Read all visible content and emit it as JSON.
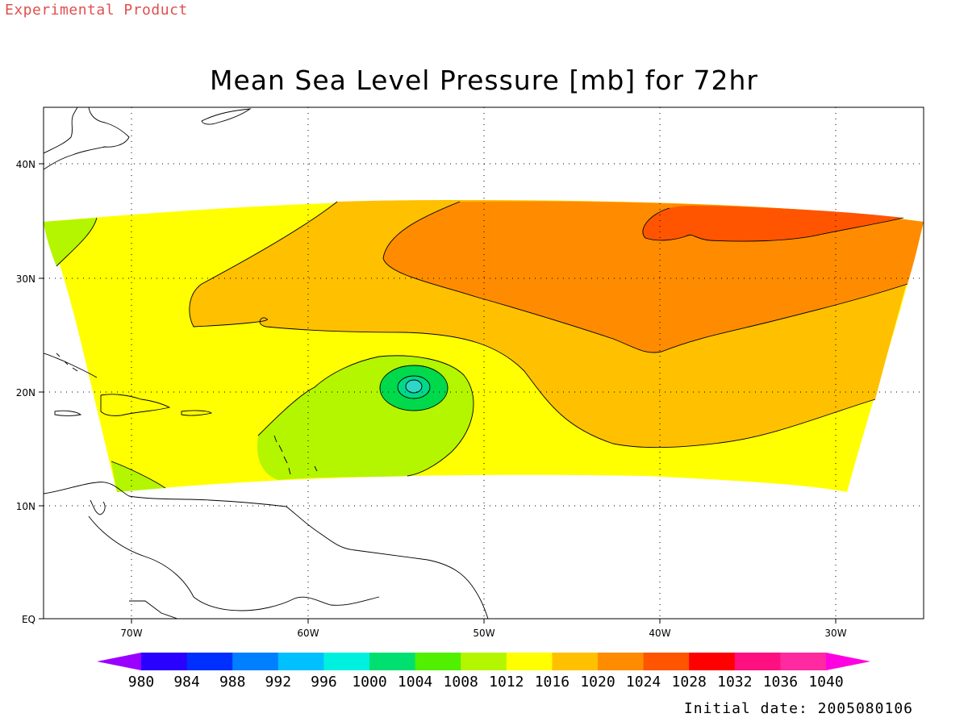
{
  "header": {
    "experimental": "Experimental Product",
    "title": "Mean Sea Level Pressure [mb] for 72hr"
  },
  "footer": {
    "initial_date": "Initial date: 2005080106"
  },
  "map": {
    "lon_labels": [
      "70W",
      "60W",
      "50W",
      "40W",
      "30W"
    ],
    "lat_labels": [
      "EQ",
      "10N",
      "20N",
      "30N",
      "40N"
    ],
    "grid": "dotted",
    "contour_fills": {
      "1004-1008": "#00d94b",
      "1008-1012": "#b4f500",
      "1012-1016": "#ffff00",
      "1016-1020": "#ffc000",
      "1020-1024": "#ff8c00",
      "1024-1028": "#ff5500",
      "996-1000": "#2fd6c8"
    }
  },
  "colorbar": {
    "levels": [
      "980",
      "984",
      "988",
      "992",
      "996",
      "1000",
      "1004",
      "1008",
      "1012",
      "1016",
      "1020",
      "1024",
      "1028",
      "1032",
      "1036",
      "1040"
    ],
    "colors": [
      "#9a00ff",
      "#2a00ff",
      "#0030ff",
      "#0080ff",
      "#00c0ff",
      "#00f0e0",
      "#00e070",
      "#50f000",
      "#b4f500",
      "#ffff00",
      "#ffc000",
      "#ff8c00",
      "#ff5500",
      "#ff0000",
      "#ff1080",
      "#ff2aa0",
      "#ff00e0"
    ]
  }
}
